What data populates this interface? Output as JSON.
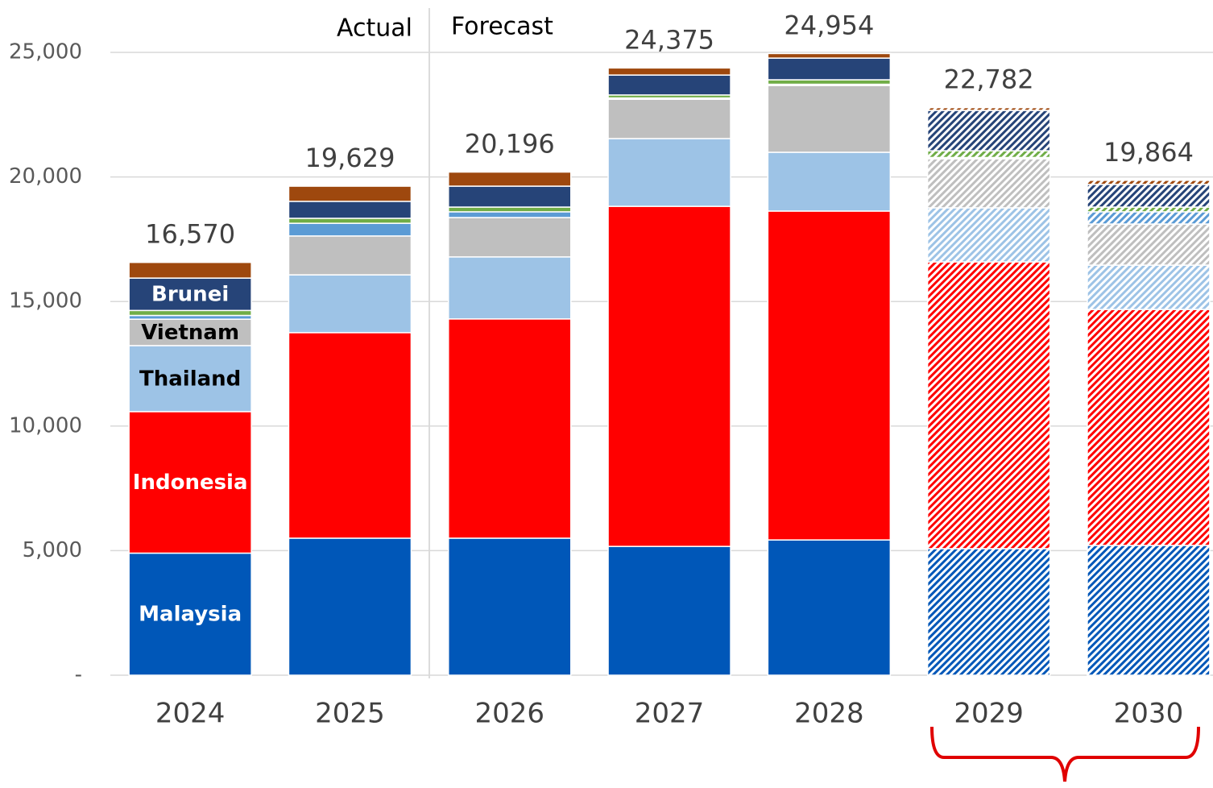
{
  "chart_data": {
    "type": "stacked_bar",
    "categories": [
      "2024",
      "2025",
      "2026",
      "2027",
      "2028",
      "2029",
      "2030"
    ],
    "series": [
      {
        "name": "Malaysia",
        "color": "#0057b8",
        "label_color": "#ffffff",
        "values": [
          4900,
          5500,
          5500,
          5170,
          5430,
          5080,
          5210
        ]
      },
      {
        "name": "Indonesia",
        "color": "#ff0000",
        "label_color": "#ffffff",
        "values": [
          5680,
          8250,
          8800,
          13650,
          13200,
          11510,
          9470
        ]
      },
      {
        "name": "Thailand",
        "color": "#9dc3e6",
        "label_color": "#000000",
        "values": [
          2650,
          2320,
          2490,
          2720,
          2360,
          2170,
          1780
        ]
      },
      {
        "name": "Vietnam",
        "color": "#bfbfbf",
        "label_color": "#000000",
        "values": [
          1060,
          1560,
          1580,
          1580,
          2680,
          1970,
          1650
        ]
      },
      {
        "color": "#5b9bd5",
        "values": [
          150,
          510,
          230,
          50,
          50,
          50,
          490
        ]
      },
      {
        "color": "#70ad47",
        "values": [
          200,
          200,
          190,
          120,
          180,
          270,
          190
        ]
      },
      {
        "name": "Brunei",
        "color": "#264478",
        "label_color": "#ffffff",
        "values": [
          1300,
          680,
          840,
          800,
          870,
          1620,
          910
        ]
      },
      {
        "color": "#9e480e",
        "values": [
          630,
          609,
          566,
          285,
          184,
          112,
          164
        ]
      }
    ],
    "hatched": [
      false,
      false,
      false,
      false,
      false,
      true,
      true
    ],
    "totals": [
      16570,
      19629,
      20196,
      24375,
      24954,
      22782,
      19864
    ],
    "total_labels": [
      "16,570",
      "19,629",
      "20,196",
      "24,375",
      "24,954",
      "22,782",
      "19,864"
    ],
    "annotations": [
      "Actual",
      "Forecast"
    ],
    "ylim": [
      0,
      25000
    ],
    "yticks": [
      {
        "value": 0,
        "label": "-"
      },
      {
        "value": 5000,
        "label": "5,000"
      },
      {
        "value": 10000,
        "label": "10,000"
      },
      {
        "value": 15000,
        "label": "15,000"
      },
      {
        "value": 20000,
        "label": "20,000"
      },
      {
        "value": 25000,
        "label": "25,000"
      }
    ],
    "grid": true
  }
}
